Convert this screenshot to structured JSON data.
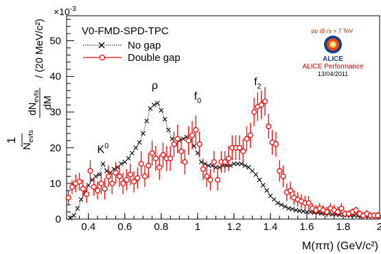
{
  "chart_data": {
    "type": "scatter",
    "title": "",
    "exponent_label": "×10",
    "exponent_power": "-3",
    "xlabel": "M(ππ) (GeV/c²)",
    "ylabel_prefix": "1",
    "ylabel_denom": "N",
    "ylabel_denom_sub": "evts",
    "ylabel_num": "dN",
    "ylabel_num_sub": "evts",
    "ylabel_dm": "dM",
    "ylabel_units": "/ (20 MeV/c²)",
    "xlim": [
      0.28,
      2.0
    ],
    "ylim": [
      0,
      57
    ],
    "x_ticks": [
      0.4,
      0.6,
      0.8,
      1.0,
      1.2,
      1.4,
      1.6,
      1.8,
      2.0
    ],
    "x_tick_labels": [
      "0.4",
      "0.6",
      "0.8",
      "1",
      "1.2",
      "1.4",
      "1.6",
      "1.8",
      "2"
    ],
    "y_ticks": [
      0,
      10,
      20,
      30,
      40,
      50
    ],
    "y_tick_labels": [
      "0",
      "10",
      "20",
      "30",
      "40",
      "50"
    ],
    "legend_title": "V0-FMD-SPD-TPC",
    "legend_position": "top-left",
    "series": [
      {
        "name": "No gap",
        "color": "#000000",
        "marker": "x",
        "x": [
          0.3,
          0.32,
          0.34,
          0.36,
          0.38,
          0.4,
          0.42,
          0.44,
          0.46,
          0.48,
          0.5,
          0.52,
          0.54,
          0.56,
          0.58,
          0.6,
          0.62,
          0.64,
          0.66,
          0.68,
          0.7,
          0.72,
          0.74,
          0.76,
          0.78,
          0.8,
          0.82,
          0.84,
          0.86,
          0.88,
          0.9,
          0.92,
          0.94,
          0.96,
          0.98,
          1.0,
          1.02,
          1.04,
          1.06,
          1.08,
          1.1,
          1.12,
          1.14,
          1.16,
          1.18,
          1.2,
          1.22,
          1.24,
          1.26,
          1.28,
          1.3,
          1.32,
          1.34,
          1.36,
          1.38,
          1.4,
          1.42,
          1.44,
          1.46,
          1.48,
          1.5,
          1.52,
          1.54,
          1.56,
          1.58,
          1.6,
          1.62,
          1.64,
          1.66,
          1.68,
          1.7,
          1.72,
          1.74,
          1.76,
          1.78,
          1.8,
          1.82,
          1.84,
          1.86,
          1.88,
          1.9,
          1.92,
          1.94,
          1.96,
          1.98,
          2.0
        ],
        "y": [
          0.3,
          1.0,
          3.0,
          5.5,
          7.5,
          9.5,
          11.0,
          12.0,
          12.5,
          15.5,
          13.5,
          13.0,
          14.0,
          14.5,
          15.5,
          16.0,
          17.0,
          18.5,
          20.0,
          21.5,
          24.0,
          27.5,
          31.0,
          32.0,
          32.5,
          30.5,
          28.0,
          25.0,
          22.5,
          21.0,
          22.0,
          22.5,
          23.0,
          22.0,
          20.5,
          18.5,
          16.0,
          15.5,
          15.0,
          15.0,
          14.5,
          14.5,
          15.0,
          15.0,
          15.0,
          15.5,
          15.5,
          15.5,
          15.0,
          14.5,
          13.5,
          12.5,
          11.0,
          9.5,
          8.0,
          6.5,
          5.5,
          4.5,
          4.0,
          3.5,
          3.0,
          2.8,
          2.5,
          2.3,
          2.2,
          2.0,
          2.0,
          1.8,
          1.8,
          1.6,
          1.5,
          1.5,
          1.3,
          1.3,
          1.2,
          1.2,
          1.0,
          1.0,
          1.0,
          0.9,
          0.8,
          0.8,
          0.7,
          0.7,
          0.6,
          0.6
        ]
      },
      {
        "name": "Double gap",
        "color": "#ff0000",
        "marker": "circle",
        "x": [
          0.29,
          0.31,
          0.33,
          0.35,
          0.37,
          0.39,
          0.41,
          0.43,
          0.45,
          0.47,
          0.49,
          0.51,
          0.53,
          0.55,
          0.57,
          0.59,
          0.61,
          0.63,
          0.65,
          0.67,
          0.69,
          0.71,
          0.73,
          0.75,
          0.77,
          0.79,
          0.81,
          0.83,
          0.85,
          0.87,
          0.89,
          0.91,
          0.93,
          0.95,
          0.97,
          0.99,
          1.01,
          1.03,
          1.05,
          1.07,
          1.09,
          1.11,
          1.13,
          1.15,
          1.17,
          1.19,
          1.21,
          1.23,
          1.25,
          1.27,
          1.29,
          1.31,
          1.33,
          1.35,
          1.37,
          1.39,
          1.41,
          1.43,
          1.45,
          1.47,
          1.49,
          1.51,
          1.53,
          1.55,
          1.57,
          1.59,
          1.61,
          1.63,
          1.65,
          1.67,
          1.69,
          1.71,
          1.73,
          1.75,
          1.77,
          1.79,
          1.81,
          1.83,
          1.85,
          1.87,
          1.89,
          1.91,
          1.93,
          1.95,
          1.97,
          1.99
        ],
        "y": [
          6.0,
          9.0,
          10.0,
          10.5,
          8.5,
          7.0,
          13.5,
          9.0,
          8.0,
          10.0,
          8.5,
          12.0,
          10.0,
          13.0,
          12.0,
          10.0,
          11.0,
          12.5,
          10.5,
          11.5,
          15.5,
          12.0,
          15.0,
          18.5,
          17.0,
          14.5,
          18.0,
          17.0,
          17.0,
          21.0,
          22.5,
          19.0,
          16.0,
          22.0,
          23.5,
          25.0,
          21.0,
          14.0,
          12.0,
          11.0,
          16.0,
          11.0,
          16.0,
          16.0,
          17.0,
          20.0,
          20.0,
          20.0,
          19.0,
          22.5,
          23.5,
          30.0,
          31.5,
          32.0,
          33.0,
          26.0,
          21.5,
          21.0,
          13.5,
          12.0,
          7.5,
          8.0,
          6.0,
          5.5,
          5.0,
          4.5,
          4.5,
          3.0,
          2.5,
          3.0,
          2.5,
          2.0,
          3.0,
          2.5,
          2.0,
          3.0,
          1.5,
          1.5,
          2.0,
          2.5,
          1.5,
          1.0,
          1.5,
          1.0,
          1.0,
          1.0
        ],
        "err": [
          2.0,
          2.0,
          2.5,
          2.5,
          2.5,
          2.5,
          3.0,
          2.5,
          2.5,
          3.0,
          3.0,
          3.0,
          3.0,
          3.0,
          3.0,
          3.0,
          3.0,
          3.0,
          3.0,
          3.0,
          3.5,
          3.0,
          3.5,
          3.5,
          3.5,
          3.5,
          3.5,
          3.5,
          3.5,
          3.5,
          4.0,
          3.5,
          3.5,
          4.0,
          4.0,
          4.0,
          3.5,
          3.0,
          3.0,
          3.0,
          3.0,
          3.0,
          3.0,
          3.0,
          3.5,
          3.5,
          3.5,
          3.5,
          3.5,
          3.5,
          3.5,
          4.0,
          4.0,
          4.0,
          4.0,
          3.5,
          3.5,
          3.5,
          3.0,
          3.0,
          2.5,
          2.5,
          2.0,
          2.0,
          2.0,
          2.0,
          2.0,
          1.5,
          1.5,
          1.5,
          1.5,
          1.5,
          1.5,
          1.5,
          1.5,
          1.5,
          1.0,
          1.0,
          1.0,
          1.0,
          1.0,
          1.0,
          1.0,
          1.0,
          1.0,
          1.0
        ]
      }
    ],
    "annotations": [
      {
        "text": "K",
        "sup": "0",
        "x": 0.48,
        "y": 18.5
      },
      {
        "text": "ρ",
        "sup": "",
        "x": 0.765,
        "y": 36.5
      },
      {
        "text": "f",
        "sub": "0",
        "x": 1.0,
        "y": 33.5
      },
      {
        "text": "f",
        "sub": "2",
        "x": 1.33,
        "y": 37.5
      }
    ]
  },
  "logo": {
    "energy_label": "pp @√s = 7 TeV",
    "text": "ALICE",
    "caption": "ALICE Performance",
    "date": "13/04/2011"
  }
}
